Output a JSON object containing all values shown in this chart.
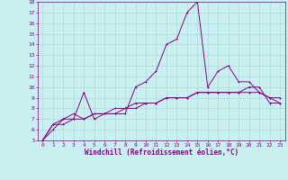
{
  "x": [
    0,
    1,
    2,
    3,
    4,
    5,
    6,
    7,
    8,
    9,
    10,
    11,
    12,
    13,
    14,
    15,
    16,
    17,
    18,
    19,
    20,
    21,
    22,
    23
  ],
  "line1": [
    5.0,
    6.5,
    7.0,
    7.0,
    9.5,
    7.0,
    7.5,
    7.5,
    7.5,
    10.0,
    10.5,
    11.5,
    14.0,
    14.5,
    17.0,
    18.0,
    10.0,
    11.5,
    12.0,
    10.5,
    10.5,
    9.5,
    9.0,
    9.0
  ],
  "line2": [
    5.0,
    6.0,
    7.0,
    7.5,
    7.0,
    7.5,
    7.5,
    7.5,
    8.0,
    8.0,
    8.5,
    8.5,
    9.0,
    9.0,
    9.0,
    9.5,
    9.5,
    9.5,
    9.5,
    9.5,
    10.0,
    10.0,
    8.5,
    8.5
  ],
  "line3": [
    5.0,
    6.5,
    6.5,
    7.0,
    7.0,
    7.5,
    7.5,
    8.0,
    8.0,
    8.5,
    8.5,
    8.5,
    9.0,
    9.0,
    9.0,
    9.5,
    9.5,
    9.5,
    9.5,
    9.5,
    9.5,
    9.5,
    9.0,
    8.5
  ],
  "bg_color": "#c8f0f0",
  "grid_color": "#aad4d4",
  "line_color": "#880088",
  "xlabel": "Windchill (Refroidissement éolien,°C)",
  "xlim": [
    -0.5,
    23.5
  ],
  "ylim": [
    5,
    18
  ],
  "yticks": [
    5,
    6,
    7,
    8,
    9,
    10,
    11,
    12,
    13,
    14,
    15,
    16,
    17,
    18
  ],
  "xticks": [
    0,
    1,
    2,
    3,
    4,
    5,
    6,
    7,
    8,
    9,
    10,
    11,
    12,
    13,
    14,
    15,
    16,
    17,
    18,
    19,
    20,
    21,
    22,
    23
  ],
  "tick_fontsize": 4.5,
  "xlabel_fontsize": 5.5
}
